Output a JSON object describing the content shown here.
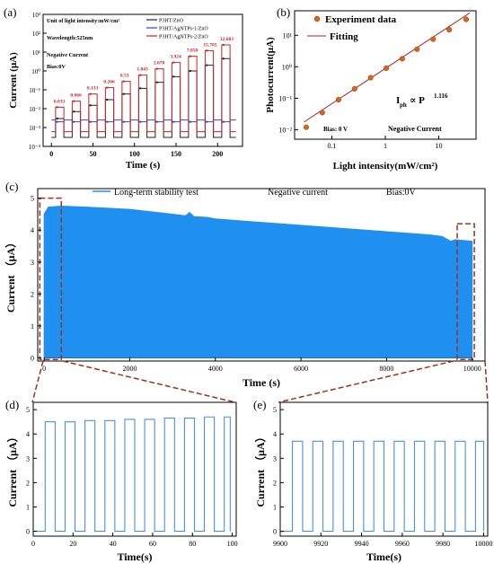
{
  "chart_data": [
    {
      "panel": "(a)",
      "type": "line",
      "xlabel": "Time (s)",
      "ylabel": "Current (μA)",
      "xticks": [
        "0",
        "50",
        "100",
        "150",
        "200"
      ],
      "yticks": [
        "10⁻⁴",
        "10⁻³",
        "10⁻²",
        "10⁻¹",
        "10⁰",
        "10¹",
        "10²",
        "10³"
      ],
      "xlim": [
        -10,
        230
      ],
      "ylim_log10": [
        -4,
        3
      ],
      "annotations": [
        "Unit of light intensity:mW/cm²",
        "Wavelength:525nm",
        "Negative Current",
        "Bias:0V"
      ],
      "legend": [
        "P3HT/ZnO",
        "P3HT/AgNTPs-1/ZnO",
        "P3HT/AgNTPs-2/ZnO"
      ],
      "colors": [
        "#222222",
        "#3344cc",
        "#cc2222"
      ],
      "light_intensities": [
        "0.033",
        "0.066",
        "0.133",
        "0.266",
        "0.53",
        "1.043",
        "2.078",
        "3.924",
        "7.858",
        "15.705",
        "32.683"
      ],
      "series": [
        {
          "name": "P3HT/ZnO",
          "dark": 0.0003,
          "peak": [
            0.003,
            0.007,
            0.015,
            0.03,
            0.06,
            0.12,
            0.25,
            0.5,
            1.0,
            2.0,
            4.5
          ]
        },
        {
          "name": "P3HT/AgNTPs-1/ZnO",
          "dark": 0.0025,
          "peak": [
            0.002,
            0.002,
            0.002,
            0.002,
            0.002,
            0.002,
            0.002,
            0.002,
            0.002,
            0.002,
            0.002
          ]
        },
        {
          "name": "P3HT/AgNTPs-2/ZnO",
          "dark": 0.0006,
          "peak": [
            0.012,
            0.025,
            0.06,
            0.13,
            0.28,
            0.6,
            1.3,
            2.8,
            6,
            12,
            24
          ]
        }
      ],
      "on_intervals_s": [
        [
          5,
          15
        ],
        [
          25,
          35
        ],
        [
          45,
          55
        ],
        [
          65,
          75
        ],
        [
          85,
          95
        ],
        [
          105,
          115
        ],
        [
          125,
          135
        ],
        [
          145,
          155
        ],
        [
          165,
          175
        ],
        [
          185,
          195
        ],
        [
          205,
          215
        ]
      ]
    },
    {
      "panel": "(b)",
      "type": "scatter",
      "xlabel": "Light intensity(mW/cm²)",
      "ylabel": "Photocurrent(μA)",
      "x_scale": "log",
      "y_scale": "log",
      "xticks": [
        "0.1",
        "1",
        "10"
      ],
      "yticks": [
        "10⁻²",
        "10⁻¹",
        "10⁰",
        "10¹"
      ],
      "xlim": [
        0.02,
        50
      ],
      "ylim": [
        0.005,
        60
      ],
      "legend": [
        "Experiment data",
        "Fitting"
      ],
      "annotations": [
        "Bias: 0 V",
        "Negative Current"
      ],
      "fit_label": {
        "main": "I",
        "sub": "ph",
        "rel": " ∝ P",
        "sup": "1.116"
      },
      "x": [
        0.033,
        0.066,
        0.133,
        0.266,
        0.53,
        1.043,
        2.078,
        3.924,
        7.858,
        15.705,
        32.683
      ],
      "y": [
        0.012,
        0.035,
        0.09,
        0.2,
        0.45,
        0.9,
        1.8,
        3.6,
        7.5,
        15,
        32
      ],
      "fit": {
        "exponent": 1.116,
        "intercept": 0.88
      }
    },
    {
      "panel": "(c)",
      "type": "area",
      "xlabel": "Time (s)",
      "ylabel": "Current （μA）",
      "xticks": [
        "0",
        "2000",
        "4000",
        "6000",
        "8000",
        "10000"
      ],
      "yticks": [
        "0",
        "1",
        "2",
        "3",
        "4",
        "5"
      ],
      "xlim": [
        -150,
        10300
      ],
      "ylim": [
        -0.1,
        5.3
      ],
      "legend": [
        "Long-term stability test"
      ],
      "annotations": [
        "Negative current",
        "Bias:0V"
      ],
      "fill_color": "#1f8ff0",
      "envelope_x": [
        0,
        100,
        400,
        1000,
        2000,
        3000,
        3300,
        3400,
        3500,
        3800,
        4000,
        5000,
        6000,
        7000,
        8000,
        9000,
        9300,
        9500,
        9600,
        10000
      ],
      "envelope_y": [
        4.5,
        4.72,
        4.75,
        4.72,
        4.65,
        4.5,
        4.45,
        4.55,
        4.42,
        4.4,
        4.35,
        4.25,
        4.15,
        4.05,
        3.95,
        3.85,
        3.8,
        3.65,
        3.7,
        3.65
      ],
      "zoom_boxes_s": [
        [
          -100,
          400
        ],
        [
          9650,
          10050
        ]
      ]
    },
    {
      "panel": "(d)",
      "type": "line",
      "xlabel": "Time(s)",
      "ylabel": "Current （μA）",
      "xticks": [
        "0",
        "20",
        "40",
        "60",
        "80",
        "100"
      ],
      "yticks": [
        "0",
        "1",
        "2",
        "3",
        "4",
        "5"
      ],
      "xlim": [
        0,
        102
      ],
      "ylim": [
        -0.2,
        5.3
      ],
      "color": "#4a90e2",
      "pulses": [
        [
          6,
          11,
          4.5
        ],
        [
          16,
          21,
          4.5
        ],
        [
          26,
          31,
          4.55
        ],
        [
          36,
          41,
          4.55
        ],
        [
          46,
          51,
          4.6
        ],
        [
          56,
          61,
          4.6
        ],
        [
          66,
          71,
          4.65
        ],
        [
          76,
          81,
          4.65
        ],
        [
          86,
          91,
          4.7
        ],
        [
          96,
          99,
          4.7
        ]
      ]
    },
    {
      "panel": "(e)",
      "type": "line",
      "xlabel": "Time(s)",
      "ylabel": "Current （μA）",
      "xticks": [
        "9900",
        "9920",
        "9940",
        "9960",
        "9980",
        "10000"
      ],
      "yticks": [
        "0",
        "1",
        "2",
        "3",
        "4",
        "5"
      ],
      "xlim": [
        9900,
        10002
      ],
      "ylim": [
        -0.2,
        5.3
      ],
      "color": "#4a90e2",
      "pulses": [
        [
          9906,
          9911,
          3.7
        ],
        [
          9916,
          9921,
          3.7
        ],
        [
          9926,
          9931,
          3.7
        ],
        [
          9936,
          9941,
          3.7
        ],
        [
          9946,
          9951,
          3.7
        ],
        [
          9956,
          9961,
          3.7
        ],
        [
          9966,
          9971,
          3.7
        ],
        [
          9976,
          9981,
          3.7
        ],
        [
          9986,
          9991,
          3.7
        ],
        [
          9996,
          10000,
          3.7
        ]
      ]
    }
  ]
}
